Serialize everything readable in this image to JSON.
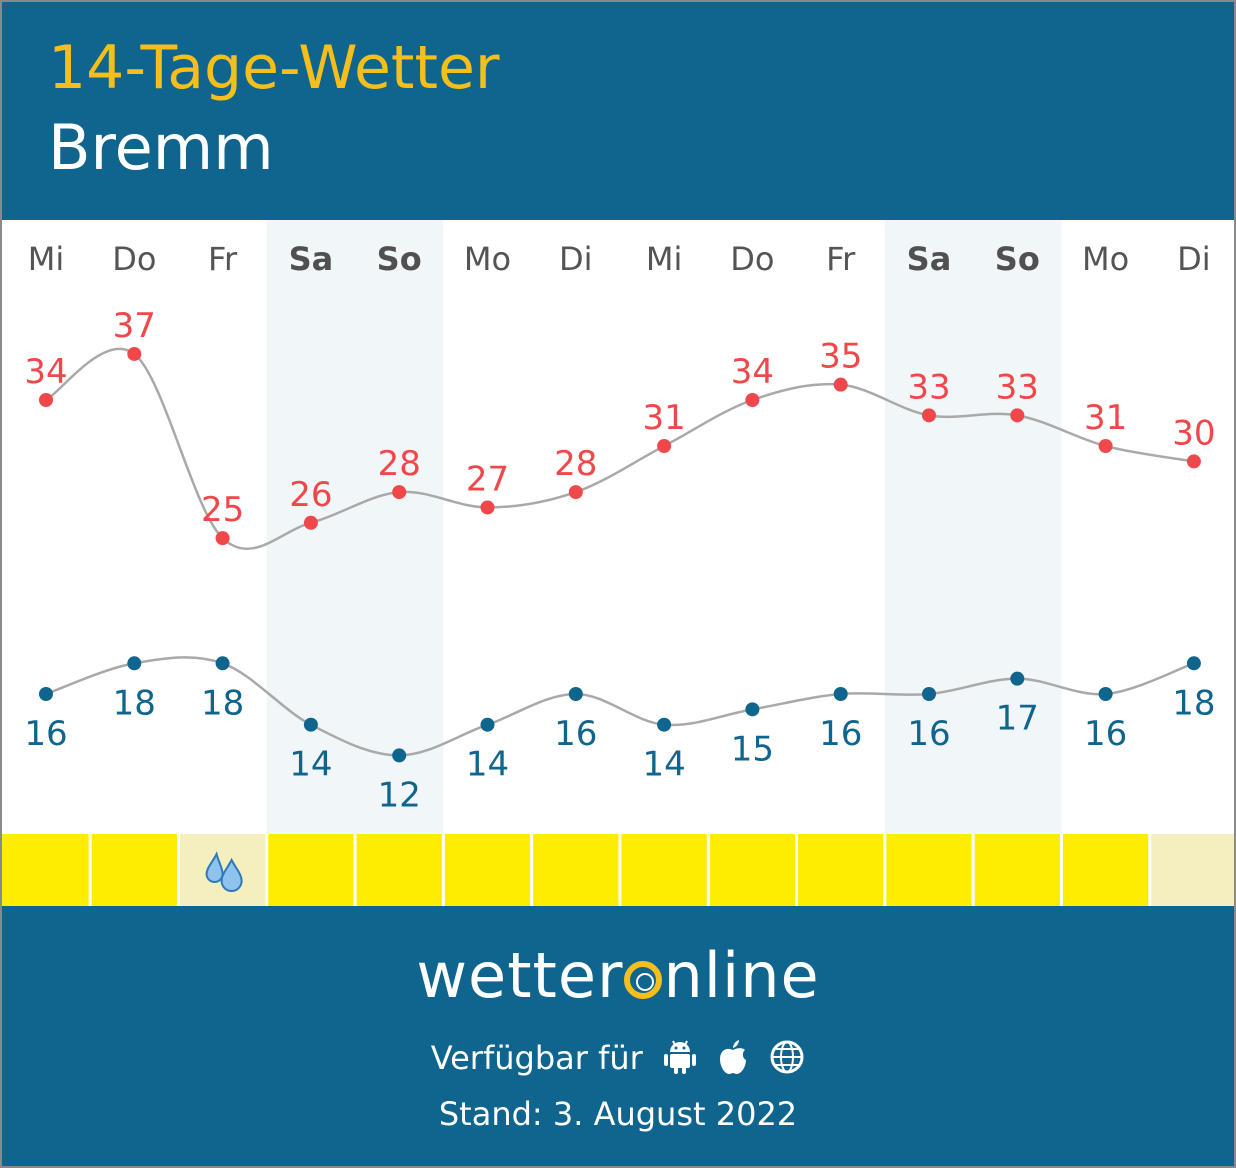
{
  "header": {
    "title": "14-Tage-Wetter",
    "location": "Bremm"
  },
  "chart_data": {
    "type": "line",
    "categories": [
      "Mi",
      "Do",
      "Fr",
      "Sa",
      "So",
      "Mo",
      "Di",
      "Mi",
      "Do",
      "Fr",
      "Sa",
      "So",
      "Mo",
      "Di"
    ],
    "weekend_days": [
      "Sa",
      "So"
    ],
    "series": [
      {
        "color": "#f0474a",
        "values": [
          34,
          37,
          25,
          26,
          28,
          27,
          28,
          31,
          34,
          35,
          33,
          33,
          31,
          30
        ]
      },
      {
        "color": "#10658e",
        "values": [
          16,
          18,
          18,
          14,
          12,
          14,
          16,
          14,
          15,
          16,
          16,
          17,
          16,
          18
        ]
      }
    ],
    "precipitation_icons": [
      "",
      "",
      "raindrops-icon",
      "",
      "",
      "",
      "",
      "",
      "",
      "",
      "",
      "",
      "",
      ""
    ],
    "sun_colors": [
      "#ffed00",
      "#ffed00",
      "#f5eebf",
      "#ffed00",
      "#ffed00",
      "#ffed00",
      "#ffed00",
      "#ffed00",
      "#ffed00",
      "#ffed00",
      "#ffed00",
      "#ffed00",
      "#ffed00",
      "#f5eebf"
    ],
    "grid": false,
    "legend": "none"
  },
  "footer": {
    "brand_part1": "wetter",
    "brand_part2": "nline",
    "available_label": "Verfügbar für",
    "platform_icons": [
      "android-icon",
      "apple-icon",
      "web-globe-icon"
    ],
    "stand_label": "Stand: 3. August 2022"
  },
  "colors": {
    "header_bg": "#10658e",
    "title": "#f6be1a",
    "weekend_bg": "#f1f6f9"
  }
}
